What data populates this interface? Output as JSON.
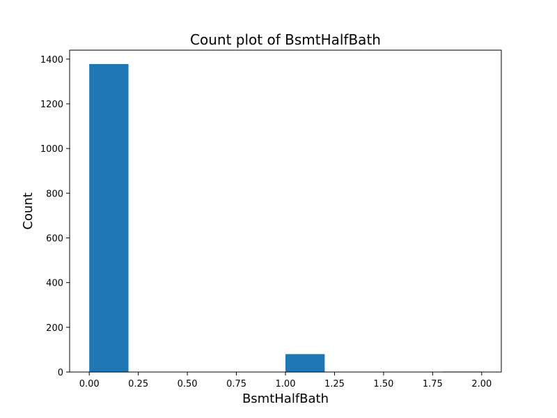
{
  "chart_data": {
    "type": "bar",
    "title": "Count plot of BsmtHalfBath",
    "xlabel": "BsmtHalfBath",
    "ylabel": "Count",
    "xlim": [
      -0.1,
      2.1
    ],
    "ylim": [
      0,
      1440
    ],
    "xticks": [
      0.0,
      0.25,
      0.5,
      0.75,
      1.0,
      1.25,
      1.5,
      1.75,
      2.0
    ],
    "xtick_labels": [
      "0.00",
      "0.25",
      "0.50",
      "0.75",
      "1.00",
      "1.25",
      "1.50",
      "1.75",
      "2.00"
    ],
    "yticks": [
      0,
      200,
      400,
      600,
      800,
      1000,
      1200,
      1400
    ],
    "ytick_labels": [
      "0",
      "200",
      "400",
      "600",
      "800",
      "1000",
      "1200",
      "1400"
    ],
    "bins": [
      {
        "start": 0.0,
        "end": 0.2,
        "count": 1378
      },
      {
        "start": 1.0,
        "end": 1.2,
        "count": 80
      },
      {
        "start": 1.8,
        "end": 2.0,
        "count": 2
      }
    ],
    "bar_color": "#1f77b4",
    "grid": false,
    "legend": "none"
  }
}
